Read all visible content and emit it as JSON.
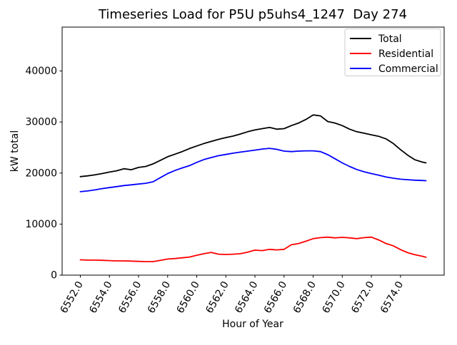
{
  "title": "Timeseries Load for P5U p5uhs4_1247  Day 274",
  "chart_data": {
    "type": "line",
    "title": "Timeseries Load for P5U p5uhs4_1247  Day 274",
    "xlabel": "Hour of Year",
    "ylabel": "kW total",
    "xlim": [
      6550.75,
      6577.0
    ],
    "ylim": [
      0,
      48600
    ],
    "grid": false,
    "legend_position": "upper right",
    "xtick_values": [
      6552,
      6554,
      6556,
      6558,
      6560,
      6562,
      6564,
      6566,
      6568,
      6570,
      6572,
      6574
    ],
    "xtick_labels": [
      "6552.0",
      "6554.0",
      "6556.0",
      "6558.0",
      "6560.0",
      "6562.0",
      "6564.0",
      "6566.0",
      "6568.0",
      "6570.0",
      "6572.0",
      "6574.0"
    ],
    "xtick_label_rotation_deg": 60,
    "ytick_values": [
      0,
      10000,
      20000,
      30000,
      40000
    ],
    "ytick_labels": [
      "0",
      "10000",
      "20000",
      "30000",
      "40000"
    ],
    "x": [
      6552,
      6552.5,
      6553,
      6553.5,
      6554,
      6554.5,
      6555,
      6555.5,
      6556,
      6556.5,
      6557,
      6557.5,
      6558,
      6558.5,
      6559,
      6559.5,
      6560,
      6560.5,
      6561,
      6561.5,
      6562,
      6562.5,
      6563,
      6563.5,
      6564,
      6564.5,
      6565,
      6565.5,
      6566,
      6566.5,
      6567,
      6567.5,
      6568,
      6568.5,
      6569,
      6569.5,
      6570,
      6570.5,
      6571,
      6571.5,
      6572,
      6572.5,
      6573,
      6573.5,
      6574,
      6574.5,
      6575,
      6575.5,
      6575.75
    ],
    "series": [
      {
        "name": "Total",
        "color": "#000000",
        "values": [
          19300,
          19450,
          19650,
          19900,
          20200,
          20450,
          20850,
          20650,
          21100,
          21300,
          21800,
          22500,
          23200,
          23700,
          24200,
          24800,
          25300,
          25800,
          26200,
          26600,
          26950,
          27250,
          27650,
          28100,
          28450,
          28700,
          28950,
          28600,
          28700,
          29300,
          29800,
          30500,
          31400,
          31200,
          30100,
          29800,
          29300,
          28600,
          28100,
          27800,
          27500,
          27200,
          26700,
          25800,
          24600,
          23500,
          22600,
          22150,
          22000
        ]
      },
      {
        "name": "Residential",
        "color": "#ff0000",
        "values": [
          3000,
          2950,
          2950,
          2900,
          2850,
          2800,
          2800,
          2750,
          2700,
          2650,
          2650,
          2900,
          3150,
          3250,
          3400,
          3550,
          3900,
          4200,
          4450,
          4100,
          4050,
          4100,
          4200,
          4500,
          4900,
          4800,
          5050,
          4950,
          5050,
          5950,
          6200,
          6650,
          7150,
          7350,
          7450,
          7300,
          7400,
          7300,
          7150,
          7350,
          7450,
          6900,
          6200,
          5750,
          5000,
          4400,
          4000,
          3700,
          3500
        ]
      },
      {
        "name": "Commercial",
        "color": "#0000ff",
        "values": [
          16350,
          16500,
          16700,
          16950,
          17150,
          17350,
          17550,
          17700,
          17850,
          18000,
          18300,
          19100,
          19900,
          20500,
          21000,
          21450,
          22100,
          22650,
          23050,
          23400,
          23650,
          23900,
          24100,
          24300,
          24500,
          24700,
          24850,
          24650,
          24300,
          24200,
          24300,
          24350,
          24350,
          24200,
          23600,
          22800,
          22000,
          21300,
          20700,
          20250,
          19900,
          19600,
          19250,
          19000,
          18800,
          18700,
          18600,
          18550,
          18500
        ]
      }
    ],
    "legend": {
      "entries": [
        {
          "label": "Total",
          "color": "#000000"
        },
        {
          "label": "Residential",
          "color": "#ff0000"
        },
        {
          "label": "Commercial",
          "color": "#0000ff"
        }
      ],
      "border_color": "#cccccc",
      "background_color": "#ffffff"
    },
    "colors": {
      "axes_background": "#ffffff",
      "figure_background": "#ffffff",
      "spine_color": "#000000",
      "tick_color": "#000000"
    }
  }
}
